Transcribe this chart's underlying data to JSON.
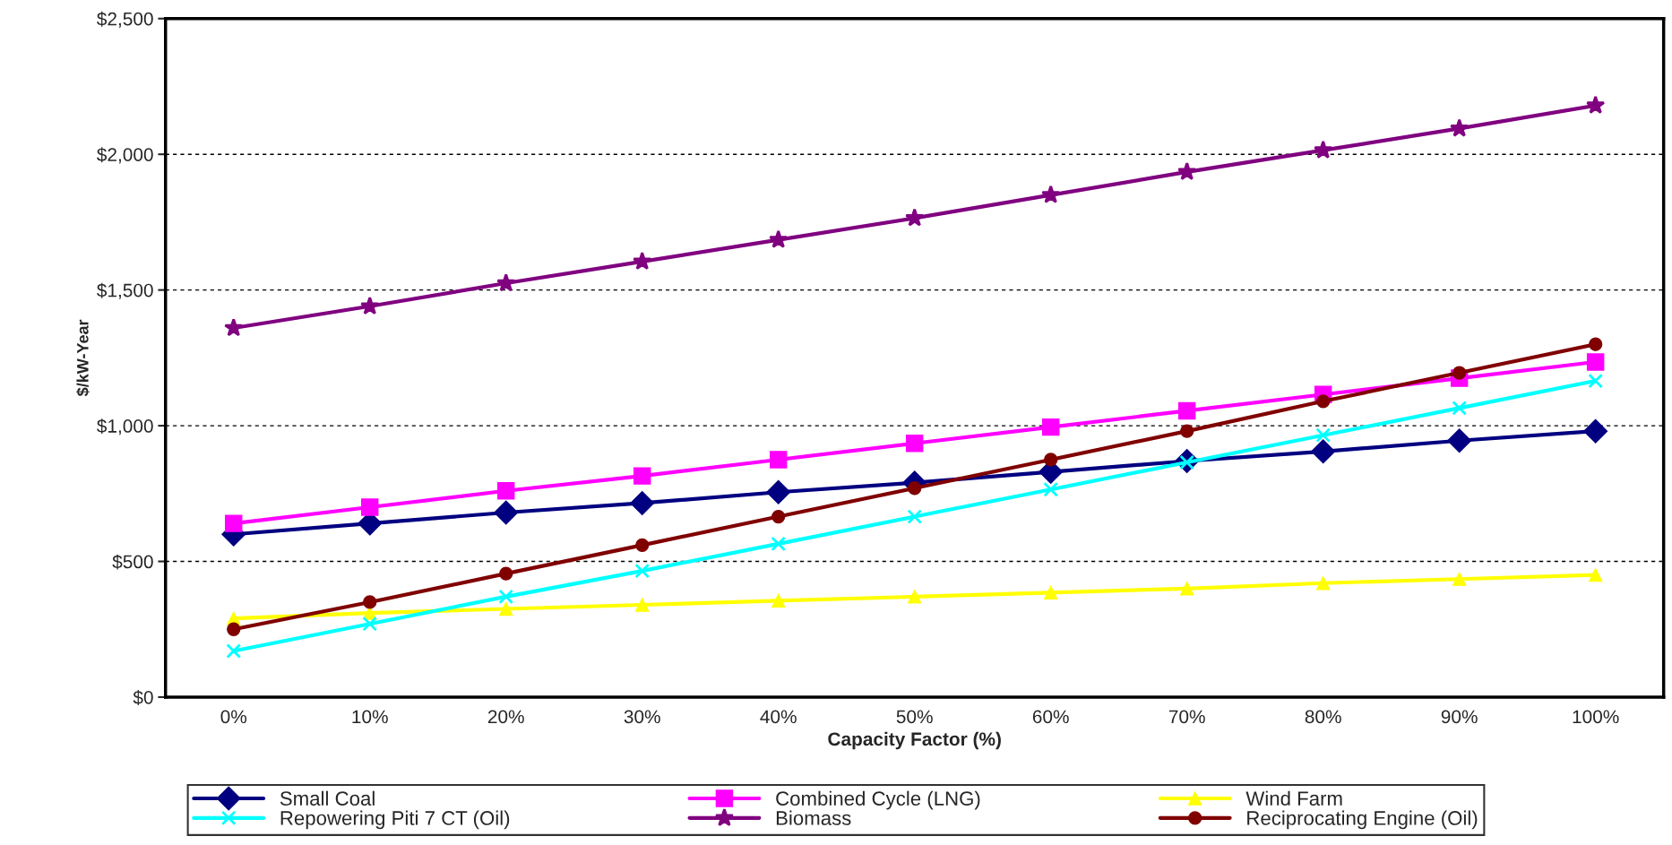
{
  "chart_data": {
    "type": "line",
    "xlabel": "Capacity Factor (%)",
    "ylabel": "$/kW-Year",
    "categories": [
      "0%",
      "10%",
      "20%",
      "30%",
      "40%",
      "50%",
      "60%",
      "70%",
      "80%",
      "90%",
      "100%"
    ],
    "series": [
      {
        "name": "Small Coal",
        "color": "#000080",
        "marker": "diamond",
        "values": [
          600,
          640,
          680,
          715,
          755,
          790,
          830,
          870,
          905,
          945,
          980
        ]
      },
      {
        "name": "Combined Cycle (LNG)",
        "color": "#ff00ff",
        "marker": "square",
        "values": [
          640,
          700,
          760,
          815,
          875,
          935,
          995,
          1055,
          1115,
          1175,
          1235
        ]
      },
      {
        "name": "Wind Farm",
        "color": "#ffff00",
        "marker": "triangle",
        "values": [
          290,
          310,
          325,
          340,
          355,
          370,
          385,
          400,
          420,
          435,
          450
        ]
      },
      {
        "name": "Repowering Piti 7 CT (Oil)",
        "color": "#00ffff",
        "marker": "cross",
        "values": [
          170,
          270,
          370,
          465,
          565,
          665,
          765,
          865,
          965,
          1065,
          1165
        ]
      },
      {
        "name": "Biomass",
        "color": "#800080",
        "marker": "star",
        "values": [
          1360,
          1440,
          1525,
          1605,
          1685,
          1765,
          1850,
          1935,
          2015,
          2095,
          2180
        ]
      },
      {
        "name": "Reciprocating Engine (Oil)",
        "color": "#800000",
        "marker": "circle",
        "values": [
          250,
          350,
          455,
          560,
          665,
          770,
          875,
          980,
          1090,
          1195,
          1300
        ]
      }
    ],
    "ylim": [
      0,
      2500
    ],
    "yticks": [
      {
        "value": 0,
        "label": "$0"
      },
      {
        "value": 500,
        "label": "$500"
      },
      {
        "value": 1000,
        "label": "$1,000"
      },
      {
        "value": 1500,
        "label": "$1,500"
      },
      {
        "value": 2000,
        "label": "$2,000"
      },
      {
        "value": 2500,
        "label": "$2,500"
      }
    ],
    "grid": "y",
    "legend": "bottom"
  }
}
